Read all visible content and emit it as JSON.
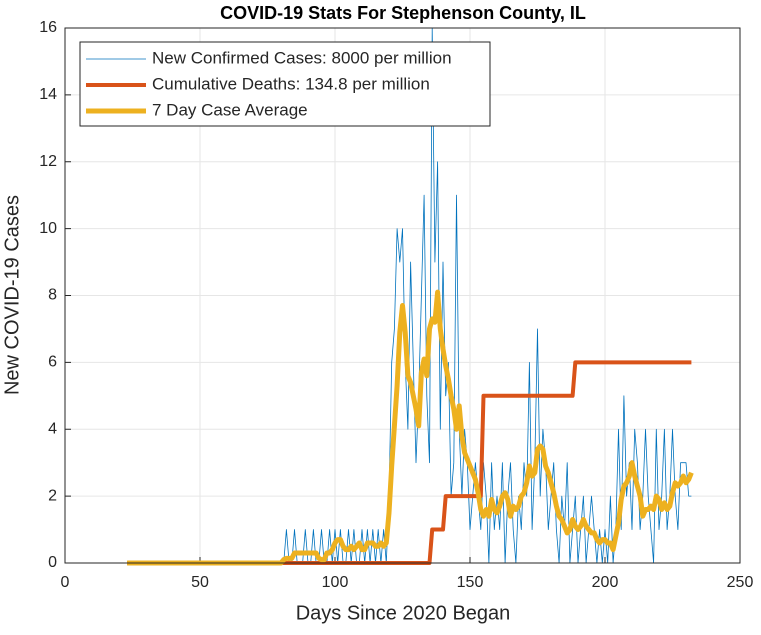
{
  "chart_data": {
    "type": "line",
    "title": "COVID-19 Stats For Stephenson County, IL",
    "xlabel": "Days Since 2020 Began",
    "ylabel": "New COVID-19 Cases",
    "xlim": [
      0,
      250
    ],
    "xticks": [
      0,
      50,
      100,
      150,
      200,
      250
    ],
    "ylim": [
      0,
      16
    ],
    "yticks": [
      0,
      2,
      4,
      6,
      8,
      10,
      12,
      14,
      16
    ],
    "grid": true,
    "legend": "upper left",
    "x": [
      23,
      24,
      25,
      26,
      27,
      28,
      29,
      30,
      31,
      32,
      33,
      34,
      35,
      36,
      37,
      38,
      39,
      40,
      41,
      42,
      43,
      44,
      45,
      46,
      47,
      48,
      49,
      50,
      51,
      52,
      53,
      54,
      55,
      56,
      57,
      58,
      59,
      60,
      61,
      62,
      63,
      64,
      65,
      66,
      67,
      68,
      69,
      70,
      71,
      72,
      73,
      74,
      75,
      76,
      77,
      78,
      79,
      80,
      81,
      82,
      83,
      84,
      85,
      86,
      87,
      88,
      89,
      90,
      91,
      92,
      93,
      94,
      95,
      96,
      97,
      98,
      99,
      100,
      101,
      102,
      103,
      104,
      105,
      106,
      107,
      108,
      109,
      110,
      111,
      112,
      113,
      114,
      115,
      116,
      117,
      118,
      119,
      120,
      121,
      122,
      123,
      124,
      125,
      126,
      127,
      128,
      129,
      130,
      131,
      132,
      133,
      134,
      135,
      136,
      137,
      138,
      139,
      140,
      141,
      142,
      143,
      144,
      145,
      146,
      147,
      148,
      149,
      150,
      151,
      152,
      153,
      154,
      155,
      156,
      157,
      158,
      159,
      160,
      161,
      162,
      163,
      164,
      165,
      166,
      167,
      168,
      169,
      170,
      171,
      172,
      173,
      174,
      175,
      176,
      177,
      178,
      179,
      180,
      181,
      182,
      183,
      184,
      185,
      186,
      187,
      188,
      189,
      190,
      191,
      192,
      193,
      194,
      195,
      196,
      197,
      198,
      199,
      200,
      201,
      202,
      203,
      204,
      205,
      206,
      207,
      208,
      209,
      210,
      211,
      212,
      213,
      214,
      215,
      216,
      217,
      218,
      219,
      220,
      221,
      222,
      223,
      224,
      225,
      226,
      227,
      228,
      229,
      230,
      231,
      232
    ],
    "series": [
      {
        "name": "New Confirmed Cases: 8000 per million",
        "color": "#0072bd",
        "width": 0.8,
        "values": [
          0,
          0,
          0,
          0,
          0,
          0,
          0,
          0,
          0,
          0,
          0,
          0,
          0,
          0,
          0,
          0,
          0,
          0,
          0,
          0,
          0,
          0,
          0,
          0,
          0,
          0,
          0,
          0,
          0,
          0,
          0,
          0,
          0,
          0,
          0,
          0,
          0,
          0,
          0,
          0,
          0,
          0,
          0,
          0,
          0,
          0,
          0,
          0,
          0,
          0,
          0,
          0,
          0,
          0,
          0,
          0,
          0,
          0,
          0,
          1,
          0,
          0,
          1,
          0,
          0,
          0,
          1,
          0,
          0,
          1,
          0,
          0,
          1,
          0,
          0,
          1,
          0,
          1,
          0,
          1,
          0,
          0,
          1,
          0,
          1,
          0,
          0,
          1,
          0,
          1,
          0,
          1,
          0,
          1,
          0,
          1,
          0,
          2,
          6,
          7,
          10,
          9,
          10,
          6,
          4,
          9,
          6,
          3,
          5,
          8,
          11,
          5,
          3,
          16,
          9,
          12,
          4,
          9,
          5,
          6,
          2,
          3,
          11,
          4,
          2,
          4,
          3,
          1,
          2,
          3,
          2,
          1,
          3,
          2,
          0,
          3,
          1,
          2,
          1,
          3,
          0,
          2,
          3,
          1,
          0,
          2,
          1,
          3,
          2,
          6,
          1,
          3,
          7,
          2,
          4,
          3,
          1,
          2,
          3,
          1,
          0,
          2,
          1,
          3,
          0,
          1,
          2,
          0,
          1,
          2,
          0,
          1,
          2,
          1,
          0,
          1,
          0,
          1,
          0,
          2,
          0,
          1,
          4,
          1,
          5,
          2,
          3,
          1,
          4,
          3,
          1,
          2,
          4,
          2,
          1,
          0,
          4,
          1,
          2,
          4,
          1,
          2,
          4,
          2,
          1,
          3,
          3,
          3,
          2,
          2
        ]
      },
      {
        "name": "Cumulative Deaths: 134.8 per million",
        "color": "#d95319",
        "width": 4,
        "values": [
          0,
          0,
          0,
          0,
          0,
          0,
          0,
          0,
          0,
          0,
          0,
          0,
          0,
          0,
          0,
          0,
          0,
          0,
          0,
          0,
          0,
          0,
          0,
          0,
          0,
          0,
          0,
          0,
          0,
          0,
          0,
          0,
          0,
          0,
          0,
          0,
          0,
          0,
          0,
          0,
          0,
          0,
          0,
          0,
          0,
          0,
          0,
          0,
          0,
          0,
          0,
          0,
          0,
          0,
          0,
          0,
          0,
          0,
          0,
          0,
          0,
          0,
          0,
          0,
          0,
          0,
          0,
          0,
          0,
          0,
          0,
          0,
          0,
          0,
          0,
          0,
          0,
          0,
          0,
          0,
          0,
          0,
          0,
          0,
          0,
          0,
          0,
          0,
          0,
          0,
          0,
          0,
          0,
          0,
          0,
          0,
          0,
          0,
          0,
          0,
          0,
          0,
          0,
          0,
          0,
          0,
          0,
          0,
          0,
          0,
          0,
          0,
          0,
          1,
          1,
          1,
          1,
          1,
          2,
          2,
          2,
          2,
          2,
          2,
          2,
          2,
          2,
          2,
          2,
          2,
          2,
          2,
          5,
          5,
          5,
          5,
          5,
          5,
          5,
          5,
          5,
          5,
          5,
          5,
          5,
          5,
          5,
          5,
          5,
          5,
          5,
          5,
          5,
          5,
          5,
          5,
          5,
          5,
          5,
          5,
          5,
          5,
          5,
          5,
          5,
          5,
          6,
          6,
          6,
          6,
          6,
          6,
          6,
          6,
          6,
          6,
          6,
          6,
          6,
          6,
          6,
          6,
          6,
          6,
          6,
          6,
          6,
          6,
          6,
          6,
          6,
          6,
          6,
          6,
          6,
          6,
          6,
          6,
          6,
          6,
          6,
          6,
          6,
          6,
          6,
          6,
          6,
          6,
          6,
          6
        ]
      },
      {
        "name": "7 Day Case Average",
        "color": "#edb120",
        "width": 5,
        "values": [
          0,
          0,
          0,
          0,
          0,
          0,
          0,
          0,
          0,
          0,
          0,
          0,
          0,
          0,
          0,
          0,
          0,
          0,
          0,
          0,
          0,
          0,
          0,
          0,
          0,
          0,
          0,
          0,
          0,
          0,
          0,
          0,
          0,
          0,
          0,
          0,
          0,
          0,
          0,
          0,
          0,
          0,
          0,
          0,
          0,
          0,
          0,
          0,
          0,
          0,
          0,
          0,
          0,
          0,
          0,
          0,
          0,
          0,
          0.1,
          0.14,
          0.14,
          0.14,
          0.3,
          0.3,
          0.3,
          0.3,
          0.3,
          0.3,
          0.3,
          0.3,
          0.3,
          0.14,
          0.1,
          0.1,
          0.3,
          0.3,
          0.4,
          0.6,
          0.7,
          0.7,
          0.5,
          0.4,
          0.4,
          0.5,
          0.4,
          0.5,
          0.6,
          0.4,
          0.4,
          0.6,
          0.6,
          0.6,
          0.5,
          0.5,
          0.6,
          0.5,
          0.6,
          1.5,
          2.9,
          4.1,
          5.3,
          6.9,
          7.7,
          6.9,
          5.6,
          5.4,
          5.0,
          4.6,
          4.1,
          5.7,
          6.1,
          5.6,
          7.0,
          7.3,
          7.2,
          8.1,
          7.0,
          6.4,
          5.9,
          5.5,
          5.0,
          4.6,
          4.0,
          4.7,
          3.8,
          3.3,
          3.1,
          2.9,
          2.7,
          2.5,
          2.1,
          1.6,
          1.4,
          1.6,
          1.4,
          1.9,
          1.6,
          1.5,
          1.7,
          2.0,
          2.1,
          1.9,
          1.4,
          1.7,
          1.6,
          1.7,
          2.0,
          2.1,
          2.4,
          2.9,
          2.6,
          2.7,
          3.4,
          3.5,
          3.4,
          2.9,
          2.7,
          2.4,
          2.1,
          1.7,
          1.4,
          1.3,
          1.1,
          0.9,
          1.0,
          1.3,
          1.1,
          1.0,
          1.1,
          1.3,
          1.1,
          1.0,
          0.9,
          0.9,
          0.7,
          0.6,
          0.7,
          0.7,
          0.6,
          0.6,
          0.4,
          0.8,
          1.2,
          1.9,
          2.3,
          2.4,
          2.6,
          3.0,
          2.6,
          2.3,
          2.0,
          1.4,
          1.6,
          1.6,
          1.7,
          1.6,
          2.0,
          1.9,
          1.6,
          1.8,
          1.6,
          1.7,
          2.1,
          2.4,
          2.3,
          2.4,
          2.6,
          2.4,
          2.5,
          2.7
        ]
      }
    ]
  }
}
